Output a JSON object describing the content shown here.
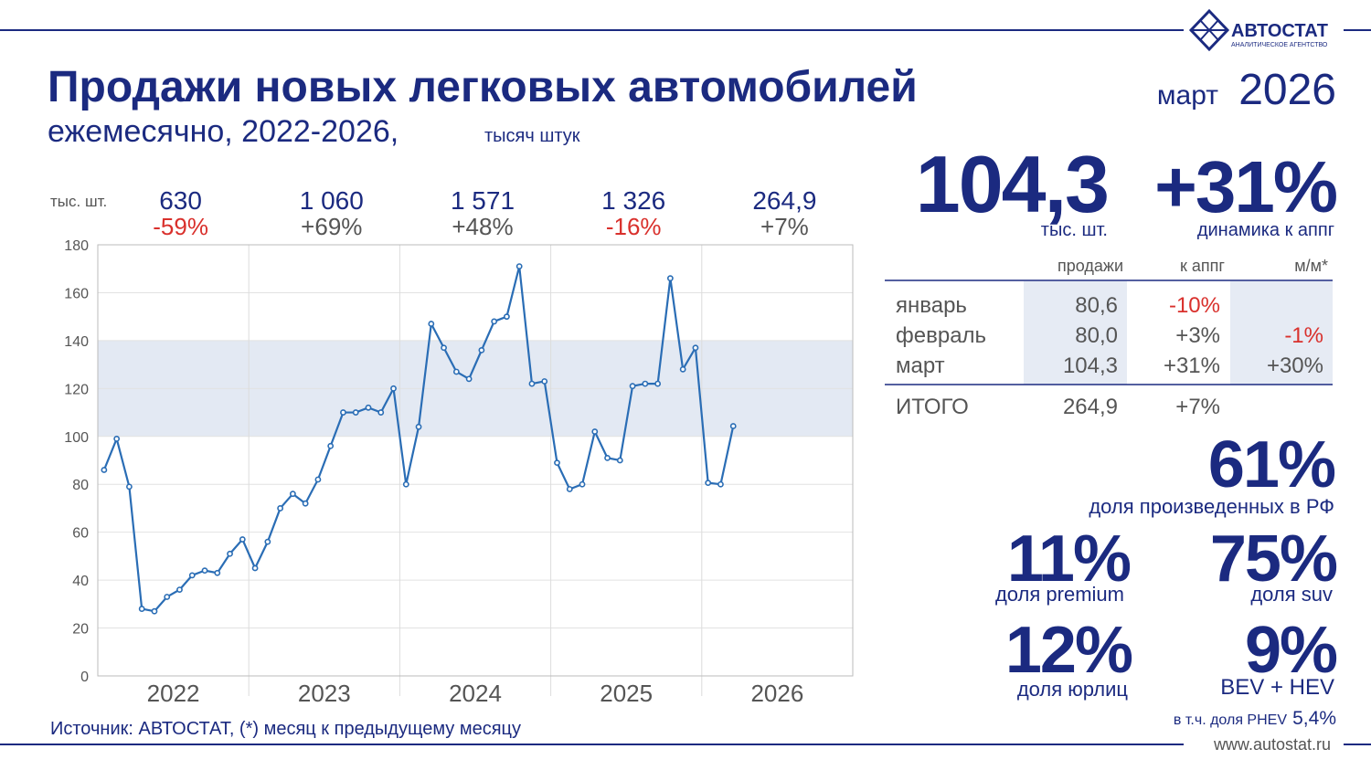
{
  "logo": {
    "name": "АВТОСТАТ",
    "tagline": "АНАЛИТИЧЕСКОЕ АГЕНТСТВО"
  },
  "header": {
    "title": "Продажи новых легковых автомобилей",
    "subtitle": "ежемесячно, 2022-2026,",
    "unit": "тысяч штук",
    "period_month": "март",
    "period_year": "2026"
  },
  "chart_data": {
    "type": "line",
    "unit_label": "тыс. шт.",
    "groups": [
      "2022",
      "2023",
      "2024",
      "2025",
      "2026"
    ],
    "group_size": 12,
    "annual_totals": [
      "630",
      "1 060",
      "1 571",
      "1 326",
      "264,9"
    ],
    "annual_changes": [
      "-59%",
      "+69%",
      "+48%",
      "-16%",
      "+7%"
    ],
    "series": [
      {
        "name": "продажи",
        "color": "#2a6db5",
        "values": [
          86,
          99,
          79,
          28,
          27,
          33,
          36,
          42,
          44,
          43,
          51,
          57,
          45,
          56,
          70,
          76,
          72,
          82,
          96,
          110,
          110,
          112,
          110,
          120,
          80,
          104,
          147,
          137,
          127,
          124,
          136,
          148,
          150,
          171,
          122,
          123,
          89,
          78,
          80,
          102,
          91,
          90,
          121,
          122,
          122,
          166,
          128,
          137,
          80.6,
          80.0,
          104.3
        ]
      }
    ],
    "ylim": [
      0,
      180
    ],
    "yticks": [
      0,
      20,
      40,
      60,
      80,
      100,
      120,
      140,
      160,
      180
    ],
    "band": [
      100,
      140
    ],
    "grid": true
  },
  "summary": {
    "value": "104,3",
    "value_unit": "тыс. шт.",
    "change": "+31%",
    "change_label": "динамика к аппг"
  },
  "table": {
    "headers": [
      "продажи",
      "к аппг",
      "м/м*"
    ],
    "rows": [
      [
        "январь",
        "80,6",
        "-10%"
      ],
      [
        "февраль",
        "80,0",
        "+3%",
        "-1%"
      ],
      [
        "март",
        "104,3",
        "+31%",
        "+30%"
      ]
    ],
    "total": [
      "ИТОГО",
      "264,9",
      "+7%"
    ]
  },
  "stats": [
    {
      "value": "61%",
      "label": "доля произведенных в РФ"
    },
    {
      "value": "11%",
      "label": "доля premium"
    },
    {
      "value": "75%",
      "label": "доля suv"
    },
    {
      "value": "12%",
      "label": "доля юрлиц"
    },
    {
      "value": "9%",
      "label": "BEV + HEV"
    }
  ],
  "phev": {
    "label": "в т.ч. доля PHEV",
    "value": "5,4%"
  },
  "footer": {
    "source": "Источник: АВТОСТАТ, (*) месяц к предыдущему месяцу",
    "url": "www.autostat.ru"
  }
}
